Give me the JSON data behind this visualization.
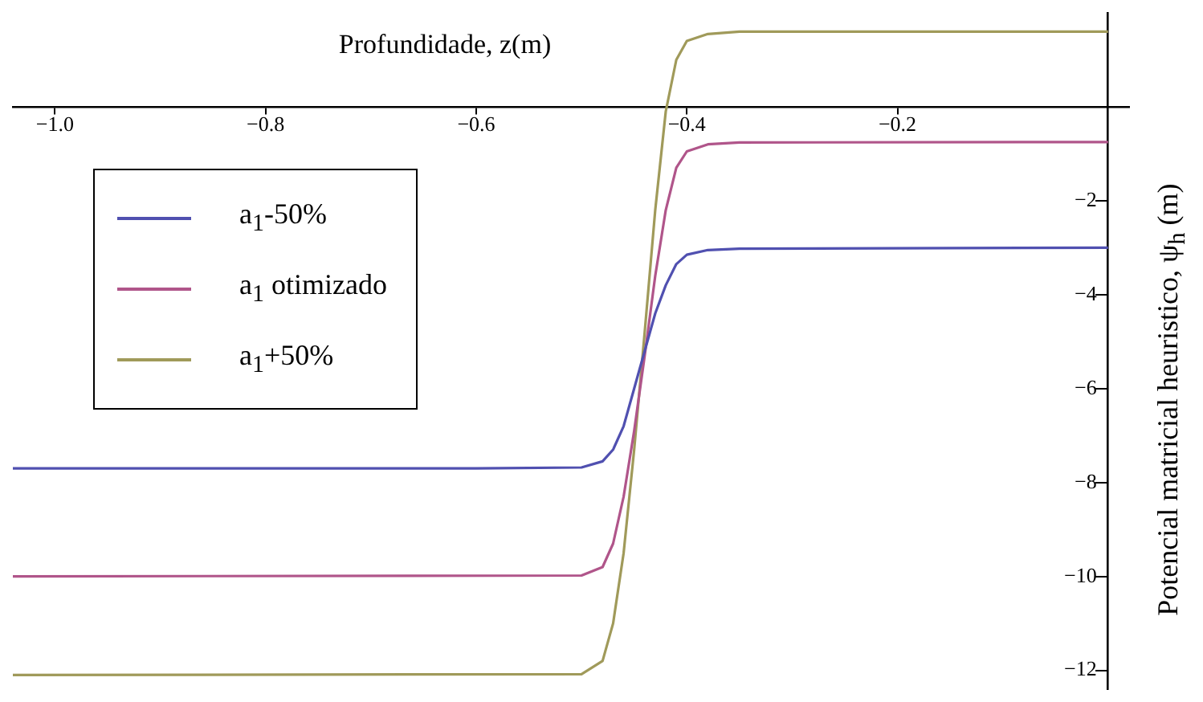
{
  "chart_data": {
    "type": "line",
    "xlabel": "Profundidade, z(m)",
    "ylabel": "Potencial matricial heuristico, ψ$_{h}$ (m)",
    "xlim": [
      -1.04,
      0.02
    ],
    "xticks": [
      {
        "value": -1,
        "label": "−1.0"
      },
      {
        "value": -0.8,
        "label": "−0.8"
      },
      {
        "value": -0.6,
        "label": "−0.6"
      },
      {
        "value": -0.4,
        "label": "−0.4"
      },
      {
        "value": -0.2,
        "label": "−0.2"
      }
    ],
    "ylim": [
      -12.4,
      2
    ],
    "yticks": [
      {
        "value": -12,
        "label": "−12"
      },
      {
        "value": -10,
        "label": "−10"
      },
      {
        "value": -8,
        "label": "−8"
      },
      {
        "value": -6,
        "label": "−6"
      },
      {
        "value": -4,
        "label": "−4"
      },
      {
        "value": -2,
        "label": "−2"
      }
    ],
    "grid": false,
    "legend": "top left",
    "marker": "none",
    "line_style": "solid",
    "series": [
      {
        "name": "a$_{1}$-50%",
        "color": "#5050b0",
        "x": [
          -1.04,
          -0.6,
          -0.5,
          -0.48,
          -0.47,
          -0.46,
          -0.45,
          -0.44,
          -0.43,
          -0.42,
          -0.41,
          -0.4,
          -0.38,
          -0.35,
          0
        ],
        "values": [
          -7.7,
          -7.7,
          -7.68,
          -7.55,
          -7.3,
          -6.8,
          -6,
          -5.2,
          -4.4,
          -3.8,
          -3.35,
          -3.15,
          -3.05,
          -3.02,
          -3
        ]
      },
      {
        "name": "a$_{1}$ otimizado",
        "color": "#b0558a",
        "x": [
          -1.04,
          -0.5,
          -0.48,
          -0.47,
          -0.46,
          -0.45,
          -0.44,
          -0.43,
          -0.42,
          -0.41,
          -0.4,
          -0.38,
          -0.35,
          0
        ],
        "values": [
          -10,
          -9.98,
          -9.8,
          -9.3,
          -8.3,
          -6.9,
          -5.3,
          -3.6,
          -2.2,
          -1.3,
          -0.95,
          -0.8,
          -0.76,
          -0.75
        ]
      },
      {
        "name": "a$_{1}$+50%",
        "color": "#a09a5a",
        "x": [
          -1.04,
          -0.5,
          -0.48,
          -0.47,
          -0.46,
          -0.45,
          -0.44,
          -0.43,
          -0.42,
          -0.41,
          -0.4,
          -0.38,
          -0.35,
          0
        ],
        "values": [
          -12.1,
          -12.08,
          -11.8,
          -11,
          -9.5,
          -7.3,
          -4.8,
          -2.2,
          -0.1,
          1,
          1.4,
          1.55,
          1.6,
          1.6
        ]
      }
    ]
  }
}
